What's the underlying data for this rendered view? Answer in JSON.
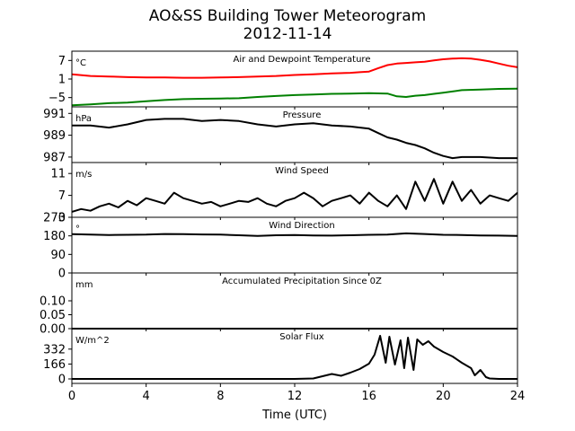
{
  "figure": {
    "title_line1": "AO&SS Building Tower Meteorogram",
    "title_line2": "2012-11-14",
    "xlabel": "Time (UTC)"
  },
  "chart_data": [
    {
      "type": "line",
      "title": "Air and Dewpoint Temperature",
      "ylabel": "°C",
      "xlim": [
        0,
        24
      ],
      "ylim": [
        -8,
        10
      ],
      "yticks": [
        7,
        1,
        -5
      ],
      "xticks": [
        0,
        4,
        8,
        12,
        16,
        20,
        24
      ],
      "series": [
        {
          "color": "#ff0000",
          "x": [
            0,
            1,
            2,
            3,
            4,
            5,
            6,
            7,
            8,
            9,
            10,
            11,
            12,
            13,
            14,
            15,
            15.5,
            16,
            16.5,
            17,
            17.5,
            18,
            18.5,
            19,
            19.5,
            20,
            20.5,
            21,
            21.5,
            22,
            22.5,
            23,
            23.5,
            24
          ],
          "y": [
            2.5,
            2.0,
            1.8,
            1.6,
            1.5,
            1.5,
            1.4,
            1.4,
            1.5,
            1.6,
            1.8,
            2.0,
            2.3,
            2.5,
            2.8,
            3.0,
            3.2,
            3.4,
            4.5,
            5.5,
            6.0,
            6.2,
            6.4,
            6.6,
            7.0,
            7.4,
            7.6,
            7.7,
            7.6,
            7.2,
            6.7,
            6.0,
            5.3,
            4.8
          ]
        },
        {
          "color": "#008000",
          "x": [
            0,
            1,
            2,
            3,
            4,
            5,
            6,
            7,
            8,
            9,
            10,
            11,
            12,
            13,
            14,
            15,
            16,
            17,
            17.5,
            18,
            18.5,
            19,
            19.5,
            20,
            21,
            22,
            23,
            24
          ],
          "y": [
            -7.5,
            -7.2,
            -6.8,
            -6.6,
            -6.2,
            -5.8,
            -5.5,
            -5.4,
            -5.3,
            -5.2,
            -4.8,
            -4.5,
            -4.2,
            -4.0,
            -3.8,
            -3.7,
            -3.6,
            -3.7,
            -4.6,
            -4.8,
            -4.4,
            -4.2,
            -3.8,
            -3.4,
            -2.6,
            -2.4,
            -2.2,
            -2.1
          ]
        }
      ]
    },
    {
      "type": "line",
      "title": "Pressure",
      "ylabel": "hPa",
      "xlim": [
        0,
        24
      ],
      "ylim": [
        986.5,
        991.6
      ],
      "yticks": [
        991,
        989,
        987
      ],
      "series": [
        {
          "color": "#000000",
          "x": [
            0,
            1,
            2,
            3,
            4,
            5,
            6,
            7,
            8,
            9,
            10,
            11,
            12,
            13,
            14,
            15,
            16,
            16.5,
            17,
            17.5,
            18,
            18.5,
            19,
            19.5,
            20,
            20.5,
            21,
            22,
            23,
            24
          ],
          "y": [
            989.9,
            989.9,
            989.7,
            990.0,
            990.4,
            990.5,
            990.5,
            990.3,
            990.4,
            990.3,
            990.0,
            989.8,
            990.0,
            990.1,
            989.9,
            989.8,
            989.6,
            989.2,
            988.8,
            988.6,
            988.3,
            988.1,
            987.8,
            987.4,
            987.1,
            986.9,
            987.0,
            987.0,
            986.9,
            986.9
          ]
        }
      ]
    },
    {
      "type": "line",
      "title": "Wind Speed",
      "ylabel": "m/s",
      "xlim": [
        0,
        24
      ],
      "ylim": [
        3,
        13
      ],
      "yticks": [
        11,
        7,
        3
      ],
      "series": [
        {
          "color": "#000000",
          "x": [
            0,
            0.5,
            1,
            1.5,
            2,
            2.5,
            3,
            3.5,
            4,
            4.5,
            5,
            5.5,
            6,
            6.5,
            7,
            7.5,
            8,
            8.5,
            9,
            9.5,
            10,
            10.5,
            11,
            11.5,
            12,
            12.5,
            13,
            13.5,
            14,
            14.5,
            15,
            15.5,
            16,
            16.5,
            17,
            17.5,
            18,
            18.5,
            19,
            19.5,
            20,
            20.5,
            21,
            21.5,
            22,
            22.5,
            23,
            23.5,
            24
          ],
          "y": [
            4.0,
            4.5,
            4.2,
            5.0,
            5.5,
            4.8,
            6.0,
            5.2,
            6.5,
            6.0,
            5.5,
            7.5,
            6.5,
            6.0,
            5.5,
            5.8,
            5.0,
            5.5,
            6.0,
            5.8,
            6.5,
            5.5,
            5.0,
            6.0,
            6.5,
            7.5,
            6.5,
            5.0,
            6.0,
            6.5,
            7.0,
            5.5,
            7.5,
            6.0,
            5.0,
            7.0,
            4.5,
            9.5,
            6.0,
            10.0,
            5.5,
            9.5,
            6.0,
            8.0,
            5.5,
            7.0,
            6.5,
            6.0,
            7.5
          ]
        }
      ]
    },
    {
      "type": "line",
      "title": "Wind Direction",
      "ylabel": "°",
      "xlim": [
        0,
        24
      ],
      "ylim": [
        0,
        270
      ],
      "yticks": [
        270,
        180,
        90,
        0
      ],
      "series": [
        {
          "color": "#000000",
          "x": [
            0,
            1,
            2,
            3,
            4,
            5,
            6,
            7,
            8,
            9,
            10,
            11,
            12,
            13,
            14,
            15,
            16,
            17,
            18,
            19,
            20,
            21,
            22,
            23,
            24
          ],
          "y": [
            188,
            186,
            184,
            185,
            186,
            189,
            188,
            187,
            186,
            183,
            180,
            183,
            184,
            182,
            181,
            183,
            185,
            186,
            192,
            189,
            185,
            184,
            182,
            181,
            180
          ]
        }
      ]
    },
    {
      "type": "line",
      "title": "Accumulated Precipitation Since 0Z",
      "ylabel": "mm",
      "xlim": [
        0,
        24
      ],
      "ylim": [
        0,
        0.2
      ],
      "yticks": [
        0.1,
        0.05,
        0.0
      ],
      "ytick_labels": [
        "0.10",
        "0.05",
        "0.00"
      ],
      "series": [
        {
          "color": "#000000",
          "x": [
            0,
            24
          ],
          "y": [
            0,
            0
          ]
        }
      ]
    },
    {
      "type": "line",
      "title": "Solar Flux",
      "ylabel": "W/m^2",
      "xlim": [
        0,
        24
      ],
      "ylim": [
        -50,
        560
      ],
      "yticks": [
        332,
        166,
        0
      ],
      "series": [
        {
          "color": "#000000",
          "x": [
            0,
            12,
            13,
            13.5,
            14,
            14.5,
            15,
            15.5,
            16,
            16.3,
            16.6,
            16.9,
            17.1,
            17.4,
            17.7,
            17.9,
            18.1,
            18.4,
            18.6,
            18.9,
            19.2,
            19.5,
            20,
            20.5,
            21,
            21.5,
            21.7,
            22,
            22.3,
            22.5,
            23,
            24
          ],
          "y": [
            0,
            0,
            5,
            30,
            55,
            35,
            70,
            110,
            170,
            270,
            480,
            180,
            470,
            160,
            430,
            120,
            460,
            100,
            440,
            380,
            420,
            360,
            300,
            250,
            180,
            120,
            40,
            100,
            20,
            5,
            0,
            0
          ]
        }
      ]
    }
  ]
}
